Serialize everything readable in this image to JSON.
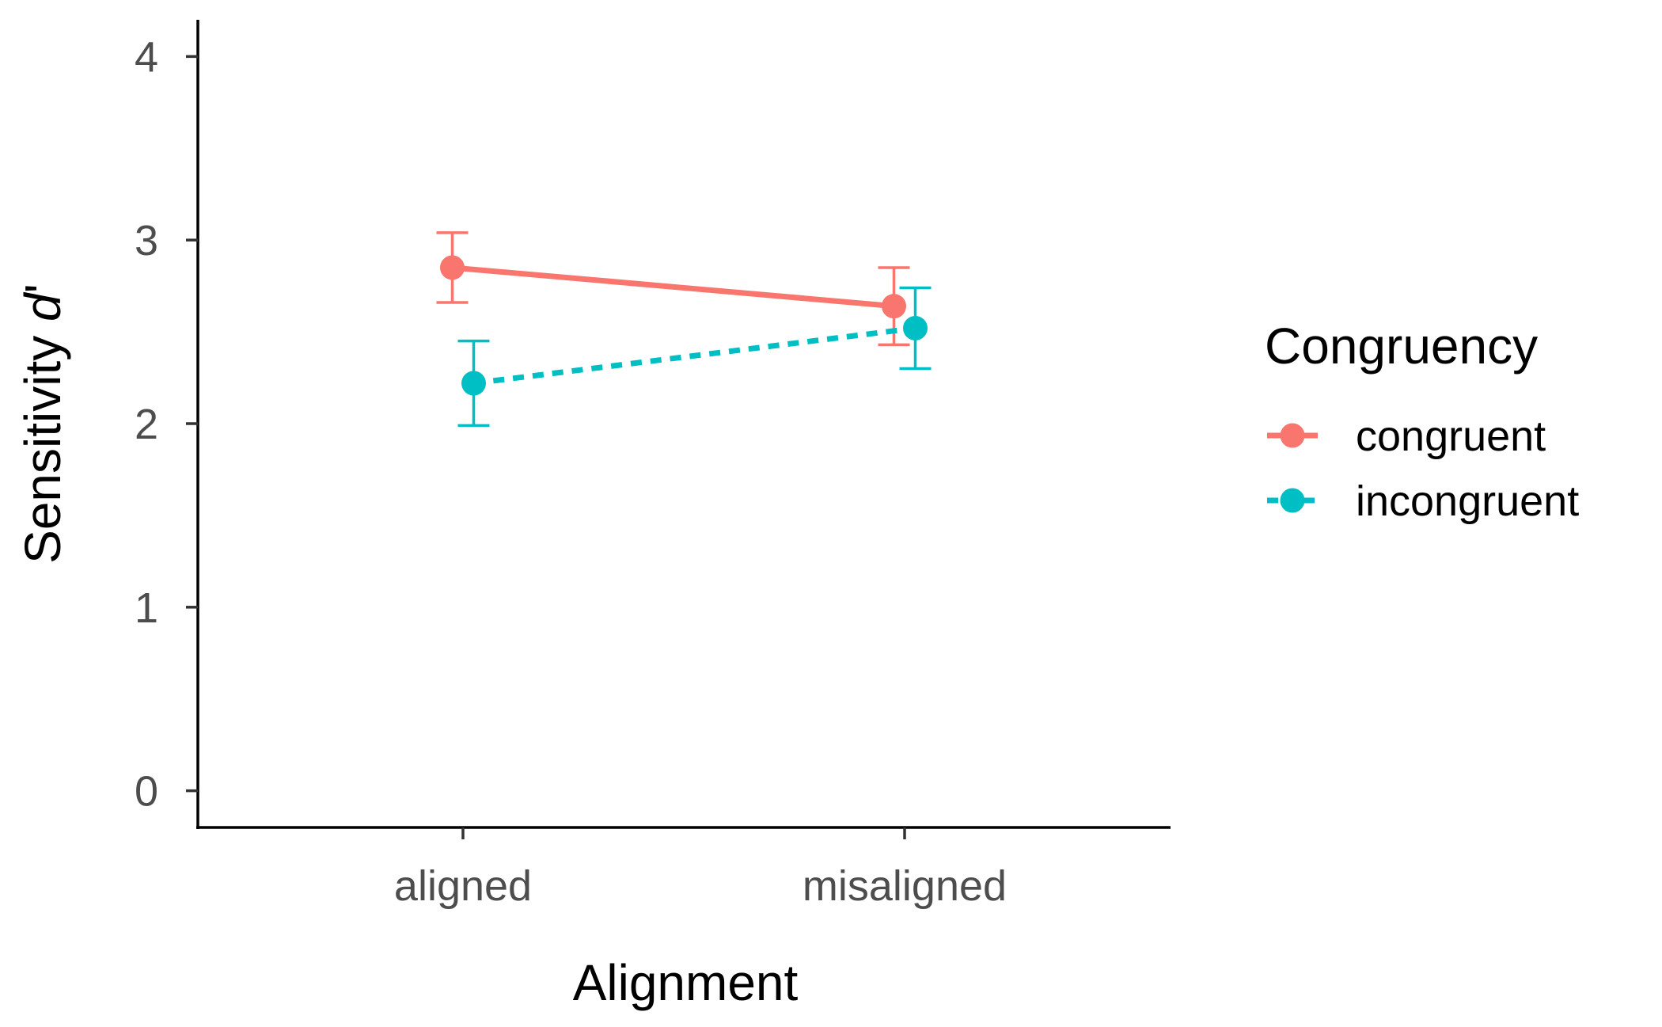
{
  "chart_data": {
    "type": "line",
    "xlabel": "Alignment",
    "ylabel_prefix": "Sensitivity ",
    "ylabel_symbol": "d",
    "ylabel_suffix": "'",
    "categories": [
      "aligned",
      "misaligned"
    ],
    "ylim": [
      -0.2,
      4.2
    ],
    "yticks": [
      0,
      1,
      2,
      3,
      4
    ],
    "grid": false,
    "legend_title": "Congruency",
    "legend_position": "right",
    "series": [
      {
        "name": "congruent",
        "color": "#F8766D",
        "linestyle": "solid",
        "values": [
          2.85,
          2.64
        ],
        "error_low": [
          2.66,
          2.43
        ],
        "error_high": [
          3.04,
          2.85
        ]
      },
      {
        "name": "incongruent",
        "color": "#00BFC4",
        "linestyle": "dashed",
        "values": [
          2.22,
          2.52
        ],
        "error_low": [
          1.99,
          2.3
        ],
        "error_high": [
          2.45,
          2.74
        ]
      }
    ]
  }
}
